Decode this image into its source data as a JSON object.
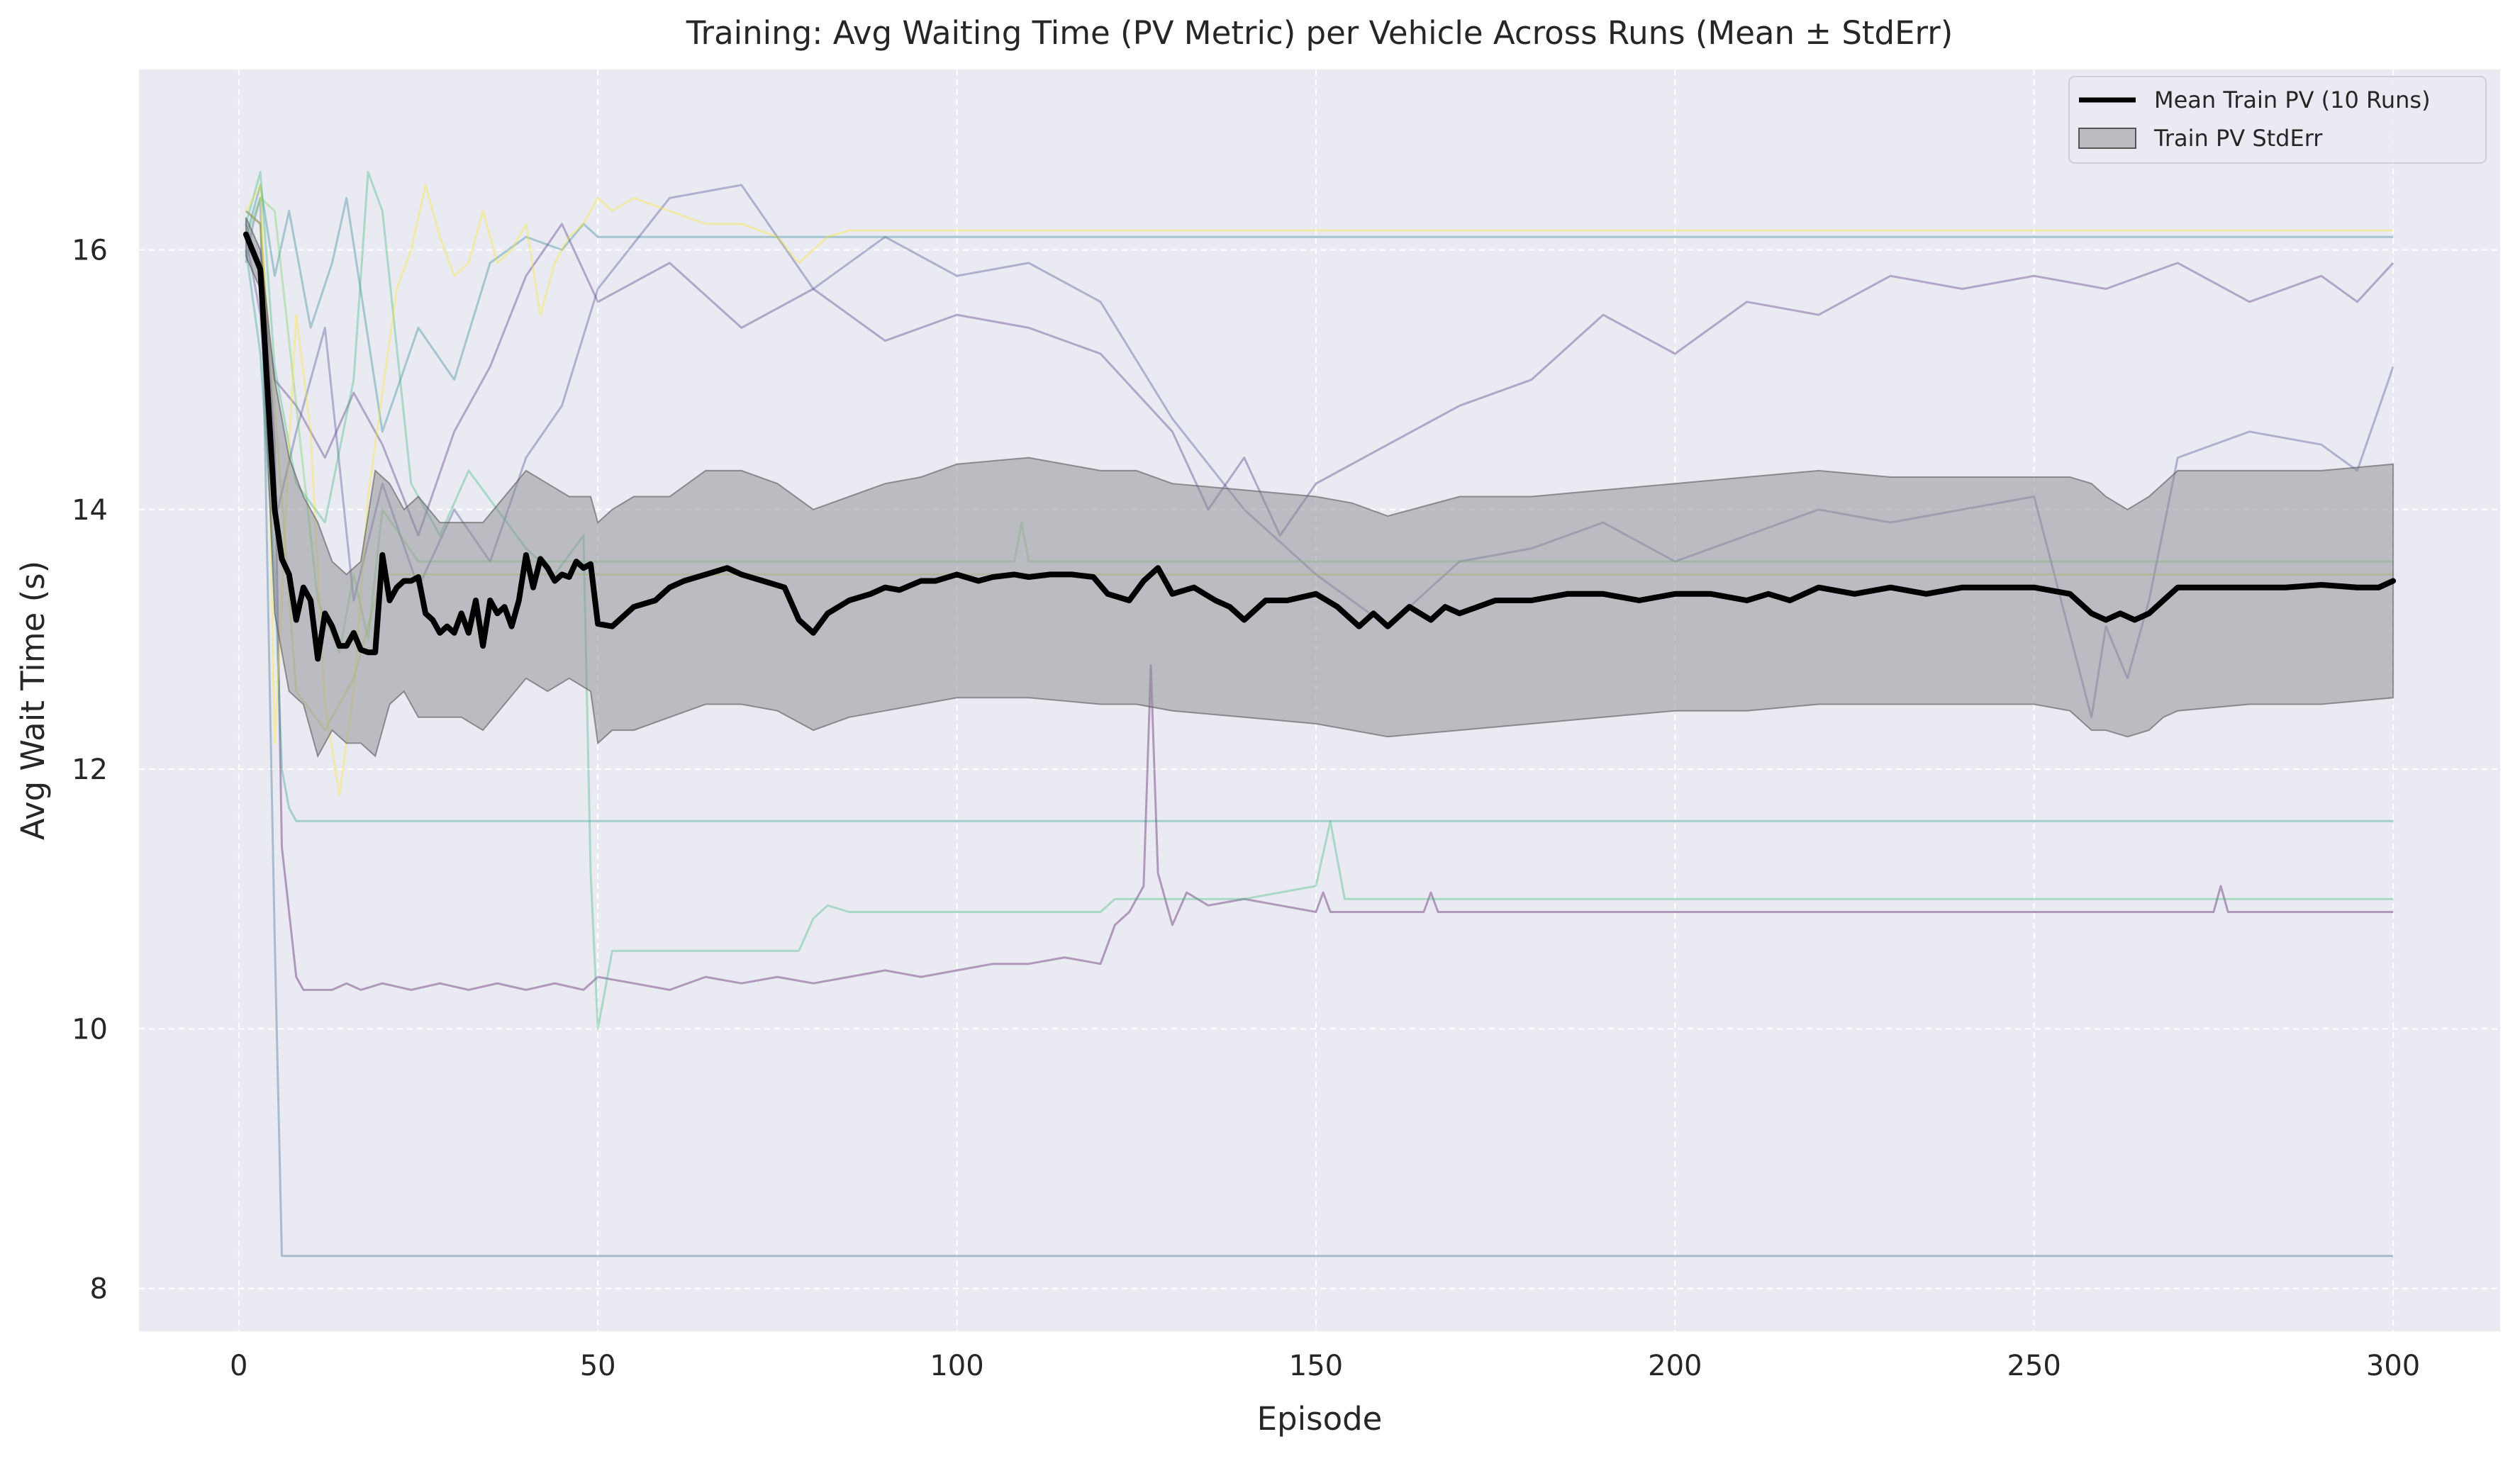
{
  "chart_data": {
    "type": "line",
    "title": "Training: Avg Waiting Time (PV Metric) per Vehicle Across Runs (Mean ± StdErr)",
    "xlabel": "Episode",
    "ylabel": "Avg Wait Time (s)",
    "xlim": [
      -13.9,
      314.9
    ],
    "ylim": [
      7.67,
      17.39
    ],
    "xticks": [
      0,
      50,
      100,
      150,
      200,
      250,
      300
    ],
    "yticks": [
      8,
      10,
      12,
      14,
      16
    ],
    "grid": true,
    "legend_position": "top-right",
    "legend": [
      {
        "label": "Mean Train PV (10 Runs)",
        "kind": "line",
        "color": "#000000"
      },
      {
        "label": "Train PV StdErr",
        "kind": "patch",
        "color": "#808080"
      }
    ],
    "colors": {
      "axes_background": "#eaeaf2",
      "grid": "#ffffff",
      "mean_line": "#000000",
      "stderr_fill": "#8c8c92",
      "run_colors": [
        "#440154",
        "#482878",
        "#3e4989",
        "#31688e",
        "#26828e",
        "#1f9e89",
        "#35b779",
        "#6ece58",
        "#b5de2b",
        "#fde725"
      ]
    },
    "mean_series": {
      "name": "Mean Train PV (10 Runs)",
      "x": [
        1,
        3,
        5,
        6,
        7,
        8,
        9,
        10,
        11,
        12,
        13,
        14,
        15,
        16,
        17,
        18,
        19,
        20,
        21,
        22,
        23,
        24,
        25,
        26,
        27,
        28,
        29,
        30,
        31,
        32,
        33,
        34,
        35,
        36,
        37,
        38,
        39,
        40,
        41,
        42,
        43,
        44,
        45,
        46,
        47,
        48,
        49,
        50,
        52,
        55,
        58,
        60,
        62,
        65,
        68,
        70,
        73,
        76,
        78,
        80,
        82,
        85,
        88,
        90,
        92,
        95,
        97,
        100,
        103,
        105,
        108,
        110,
        113,
        116,
        119,
        121,
        124,
        126,
        128,
        130,
        133,
        136,
        138,
        140,
        143,
        146,
        150,
        153,
        156,
        158,
        160,
        163,
        166,
        168,
        170,
        175,
        180,
        185,
        190,
        195,
        200,
        205,
        210,
        213,
        216,
        220,
        225,
        230,
        235,
        240,
        245,
        250,
        255,
        258,
        260,
        262,
        264,
        266,
        268,
        270,
        275,
        280,
        285,
        290,
        295,
        298,
        300
      ],
      "y": [
        16.12,
        15.85,
        14.0,
        13.62,
        13.5,
        13.15,
        13.4,
        13.3,
        12.85,
        13.2,
        13.1,
        12.95,
        12.95,
        13.05,
        12.92,
        12.9,
        12.9,
        13.65,
        13.3,
        13.4,
        13.45,
        13.45,
        13.48,
        13.2,
        13.15,
        13.05,
        13.1,
        13.05,
        13.2,
        13.05,
        13.3,
        12.95,
        13.3,
        13.2,
        13.25,
        13.1,
        13.3,
        13.65,
        13.4,
        13.62,
        13.55,
        13.45,
        13.5,
        13.48,
        13.6,
        13.55,
        13.58,
        13.12,
        13.1,
        13.25,
        13.3,
        13.4,
        13.45,
        13.5,
        13.55,
        13.5,
        13.45,
        13.4,
        13.15,
        13.05,
        13.2,
        13.3,
        13.35,
        13.4,
        13.38,
        13.45,
        13.45,
        13.5,
        13.45,
        13.48,
        13.5,
        13.48,
        13.5,
        13.5,
        13.48,
        13.35,
        13.3,
        13.45,
        13.55,
        13.35,
        13.4,
        13.3,
        13.25,
        13.15,
        13.3,
        13.3,
        13.35,
        13.25,
        13.1,
        13.2,
        13.1,
        13.25,
        13.15,
        13.25,
        13.2,
        13.3,
        13.3,
        13.35,
        13.35,
        13.3,
        13.35,
        13.35,
        13.3,
        13.35,
        13.3,
        13.4,
        13.35,
        13.4,
        13.35,
        13.4,
        13.4,
        13.4,
        13.35,
        13.2,
        13.15,
        13.2,
        13.15,
        13.2,
        13.3,
        13.4,
        13.4,
        13.4,
        13.4,
        13.42,
        13.4,
        13.4,
        13.45
      ]
    },
    "stderr_band": {
      "name": "Train PV StdErr",
      "x": [
        1,
        3,
        5,
        7,
        9,
        11,
        13,
        15,
        17,
        19,
        21,
        23,
        25,
        28,
        31,
        34,
        37,
        40,
        43,
        46,
        49,
        50,
        52,
        55,
        60,
        65,
        70,
        75,
        80,
        85,
        90,
        95,
        100,
        110,
        120,
        125,
        130,
        140,
        150,
        155,
        160,
        170,
        180,
        190,
        200,
        210,
        220,
        230,
        240,
        250,
        255,
        258,
        260,
        263,
        266,
        268,
        270,
        280,
        290,
        300
      ],
      "upper": [
        16.25,
        16.0,
        15.0,
        14.4,
        14.1,
        13.9,
        13.6,
        13.5,
        13.6,
        14.3,
        14.2,
        14.0,
        14.1,
        13.9,
        13.9,
        13.9,
        14.1,
        14.3,
        14.2,
        14.1,
        14.1,
        13.9,
        14.0,
        14.1,
        14.1,
        14.3,
        14.3,
        14.2,
        14.0,
        14.1,
        14.2,
        14.25,
        14.35,
        14.4,
        14.3,
        14.3,
        14.2,
        14.15,
        14.1,
        14.05,
        13.95,
        14.1,
        14.1,
        14.15,
        14.2,
        14.25,
        14.3,
        14.25,
        14.25,
        14.25,
        14.25,
        14.2,
        14.1,
        14.0,
        14.1,
        14.2,
        14.3,
        14.3,
        14.3,
        14.35
      ],
      "lower": [
        15.95,
        15.7,
        13.2,
        12.6,
        12.5,
        12.1,
        12.3,
        12.2,
        12.2,
        12.1,
        12.5,
        12.6,
        12.4,
        12.4,
        12.4,
        12.3,
        12.5,
        12.7,
        12.6,
        12.7,
        12.6,
        12.2,
        12.3,
        12.3,
        12.4,
        12.5,
        12.5,
        12.45,
        12.3,
        12.4,
        12.45,
        12.5,
        12.55,
        12.55,
        12.5,
        12.5,
        12.45,
        12.4,
        12.35,
        12.3,
        12.25,
        12.3,
        12.35,
        12.4,
        12.45,
        12.45,
        12.5,
        12.5,
        12.5,
        12.5,
        12.45,
        12.3,
        12.3,
        12.25,
        12.3,
        12.4,
        12.45,
        12.5,
        12.5,
        12.55
      ]
    },
    "run_series": [
      {
        "color": "#440154",
        "x": [
          1,
          3,
          5,
          6,
          7,
          8,
          9,
          11,
          13,
          15,
          17,
          20,
          24,
          28,
          32,
          36,
          40,
          44,
          48,
          50,
          55,
          60,
          65,
          70,
          75,
          80,
          85,
          90,
          95,
          100,
          105,
          110,
          115,
          120,
          122,
          124,
          126,
          127,
          128,
          130,
          132,
          135,
          140,
          145,
          150,
          151,
          152,
          155,
          160,
          165,
          166,
          167,
          170,
          180,
          200,
          250,
          275,
          276,
          277,
          280,
          300
        ],
        "y": [
          16.3,
          16.2,
          14.5,
          11.4,
          10.9,
          10.4,
          10.3,
          10.3,
          10.3,
          10.35,
          10.3,
          10.35,
          10.3,
          10.35,
          10.3,
          10.35,
          10.3,
          10.35,
          10.3,
          10.4,
          10.35,
          10.3,
          10.4,
          10.35,
          10.4,
          10.35,
          10.4,
          10.45,
          10.4,
          10.45,
          10.5,
          10.5,
          10.55,
          10.5,
          10.8,
          10.9,
          11.1,
          12.8,
          11.2,
          10.8,
          11.05,
          10.95,
          11.0,
          10.95,
          10.9,
          11.05,
          10.9,
          10.9,
          10.9,
          10.9,
          11.05,
          10.9,
          10.9,
          10.9,
          10.9,
          10.9,
          10.9,
          11.1,
          10.9,
          10.9,
          10.9
        ]
      },
      {
        "color": "#482878",
        "x": [
          1,
          3,
          5,
          8,
          12,
          16,
          20,
          25,
          30,
          35,
          40,
          45,
          50,
          60,
          70,
          80,
          90,
          100,
          110,
          120,
          125,
          130,
          135,
          140,
          145,
          150,
          160,
          170,
          180,
          190,
          200,
          210,
          220,
          230,
          240,
          250,
          260,
          270,
          280,
          290,
          295,
          300
        ],
        "y": [
          16.2,
          15.8,
          15.0,
          14.8,
          14.4,
          14.9,
          14.5,
          13.8,
          14.6,
          15.1,
          15.8,
          16.2,
          15.6,
          15.9,
          15.4,
          15.7,
          15.3,
          15.5,
          15.4,
          15.2,
          14.9,
          14.6,
          14.0,
          14.4,
          13.8,
          14.2,
          14.5,
          14.8,
          15.0,
          15.5,
          15.2,
          15.6,
          15.5,
          15.8,
          15.7,
          15.8,
          15.7,
          15.9,
          15.6,
          15.8,
          15.6,
          15.9
        ]
      },
      {
        "color": "#3e4989",
        "x": [
          1,
          3,
          5,
          8,
          12,
          16,
          20,
          25,
          30,
          35,
          40,
          45,
          50,
          60,
          70,
          80,
          90,
          100,
          110,
          120,
          130,
          140,
          150,
          160,
          170,
          180,
          190,
          200,
          210,
          220,
          230,
          240,
          250,
          258,
          260,
          263,
          266,
          270,
          280,
          290,
          295,
          300
        ],
        "y": [
          16.1,
          15.5,
          13.9,
          14.6,
          15.4,
          13.3,
          14.2,
          13.4,
          14.0,
          13.6,
          14.4,
          14.8,
          15.7,
          16.4,
          16.5,
          15.7,
          16.1,
          15.8,
          15.9,
          15.6,
          14.7,
          14.0,
          13.5,
          13.1,
          13.6,
          13.7,
          13.9,
          13.6,
          13.8,
          14.0,
          13.9,
          14.0,
          14.1,
          12.4,
          13.1,
          12.7,
          13.3,
          14.4,
          14.6,
          14.5,
          14.3,
          15.1
        ]
      },
      {
        "color": "#31688e",
        "x": [
          1,
          2,
          3,
          4,
          5,
          6,
          7,
          300
        ],
        "y": [
          15.9,
          16.2,
          16.4,
          13.5,
          10.7,
          8.25,
          8.25,
          8.25
        ]
      },
      {
        "color": "#26828e",
        "x": [
          1,
          3,
          5,
          7,
          10,
          13,
          15,
          20,
          25,
          30,
          35,
          40,
          45,
          48,
          50,
          52,
          55,
          60,
          70,
          80,
          90,
          100,
          110,
          120,
          130,
          140,
          150,
          200,
          250,
          300
        ],
        "y": [
          16.1,
          16.5,
          15.8,
          16.3,
          15.4,
          15.9,
          16.4,
          14.6,
          15.4,
          15.0,
          15.9,
          16.1,
          16.0,
          16.2,
          16.1,
          16.1,
          16.1,
          16.1,
          16.1,
          16.1,
          16.1,
          16.1,
          16.1,
          16.1,
          16.1,
          16.1,
          16.1,
          16.1,
          16.1,
          16.1
        ]
      },
      {
        "color": "#1f9e89",
        "x": [
          1,
          3,
          5,
          6,
          7,
          8,
          10,
          14,
          300
        ],
        "y": [
          16.0,
          15.2,
          13.5,
          12.0,
          11.7,
          11.6,
          11.6,
          11.6,
          11.6
        ]
      },
      {
        "color": "#35b779",
        "x": [
          1,
          3,
          5,
          8,
          12,
          16,
          18,
          20,
          24,
          28,
          32,
          36,
          40,
          44,
          48,
          49,
          50,
          52,
          60,
          70,
          78,
          80,
          82,
          85,
          100,
          120,
          122,
          140,
          150,
          152,
          154,
          160,
          200,
          250,
          300
        ],
        "y": [
          16.2,
          16.6,
          15.1,
          14.2,
          13.9,
          15.0,
          16.6,
          16.3,
          14.2,
          13.8,
          14.3,
          14.0,
          13.7,
          13.5,
          13.8,
          11.2,
          10.0,
          10.6,
          10.6,
          10.6,
          10.6,
          10.85,
          10.95,
          10.9,
          10.9,
          10.9,
          11.0,
          11.0,
          11.1,
          11.6,
          11.0,
          11.0,
          11.0,
          11.0,
          11.0
        ]
      },
      {
        "color": "#6ece58",
        "x": [
          1,
          3,
          5,
          8,
          11,
          14,
          16,
          18,
          20,
          25,
          30,
          40,
          50,
          100,
          108,
          109,
          110,
          150,
          200,
          250,
          300
        ],
        "y": [
          16.1,
          16.4,
          16.3,
          14.8,
          13.3,
          12.9,
          13.5,
          13.0,
          14.0,
          13.6,
          13.6,
          13.6,
          13.6,
          13.6,
          13.6,
          13.9,
          13.6,
          13.6,
          13.6,
          13.6,
          13.6
        ]
      },
      {
        "color": "#b5de2b",
        "x": [
          1,
          3,
          5,
          8,
          12,
          16,
          20,
          30,
          40,
          50,
          100,
          200,
          300
        ],
        "y": [
          16.3,
          16.2,
          14.8,
          12.6,
          12.3,
          12.7,
          13.5,
          13.5,
          13.5,
          13.5,
          13.5,
          13.5,
          13.5
        ]
      },
      {
        "color": "#fde725",
        "x": [
          1,
          3,
          4,
          5,
          6,
          7,
          8,
          10,
          12,
          14,
          16,
          18,
          20,
          22,
          24,
          26,
          28,
          30,
          32,
          34,
          36,
          38,
          40,
          42,
          44,
          46,
          48,
          50,
          52,
          55,
          60,
          65,
          70,
          75,
          78,
          80,
          82,
          85,
          90,
          100,
          150,
          200,
          250,
          300
        ],
        "y": [
          16.3,
          16.5,
          15.0,
          12.2,
          13.3,
          14.5,
          15.5,
          14.6,
          12.5,
          11.8,
          12.6,
          14.1,
          14.9,
          15.7,
          16.0,
          16.5,
          16.1,
          15.8,
          15.9,
          16.3,
          15.9,
          16.0,
          16.2,
          15.5,
          15.9,
          16.1,
          16.2,
          16.4,
          16.3,
          16.4,
          16.3,
          16.2,
          16.2,
          16.1,
          15.9,
          16.0,
          16.1,
          16.15,
          16.15,
          16.15,
          16.15,
          16.15,
          16.15,
          16.15
        ]
      }
    ]
  }
}
